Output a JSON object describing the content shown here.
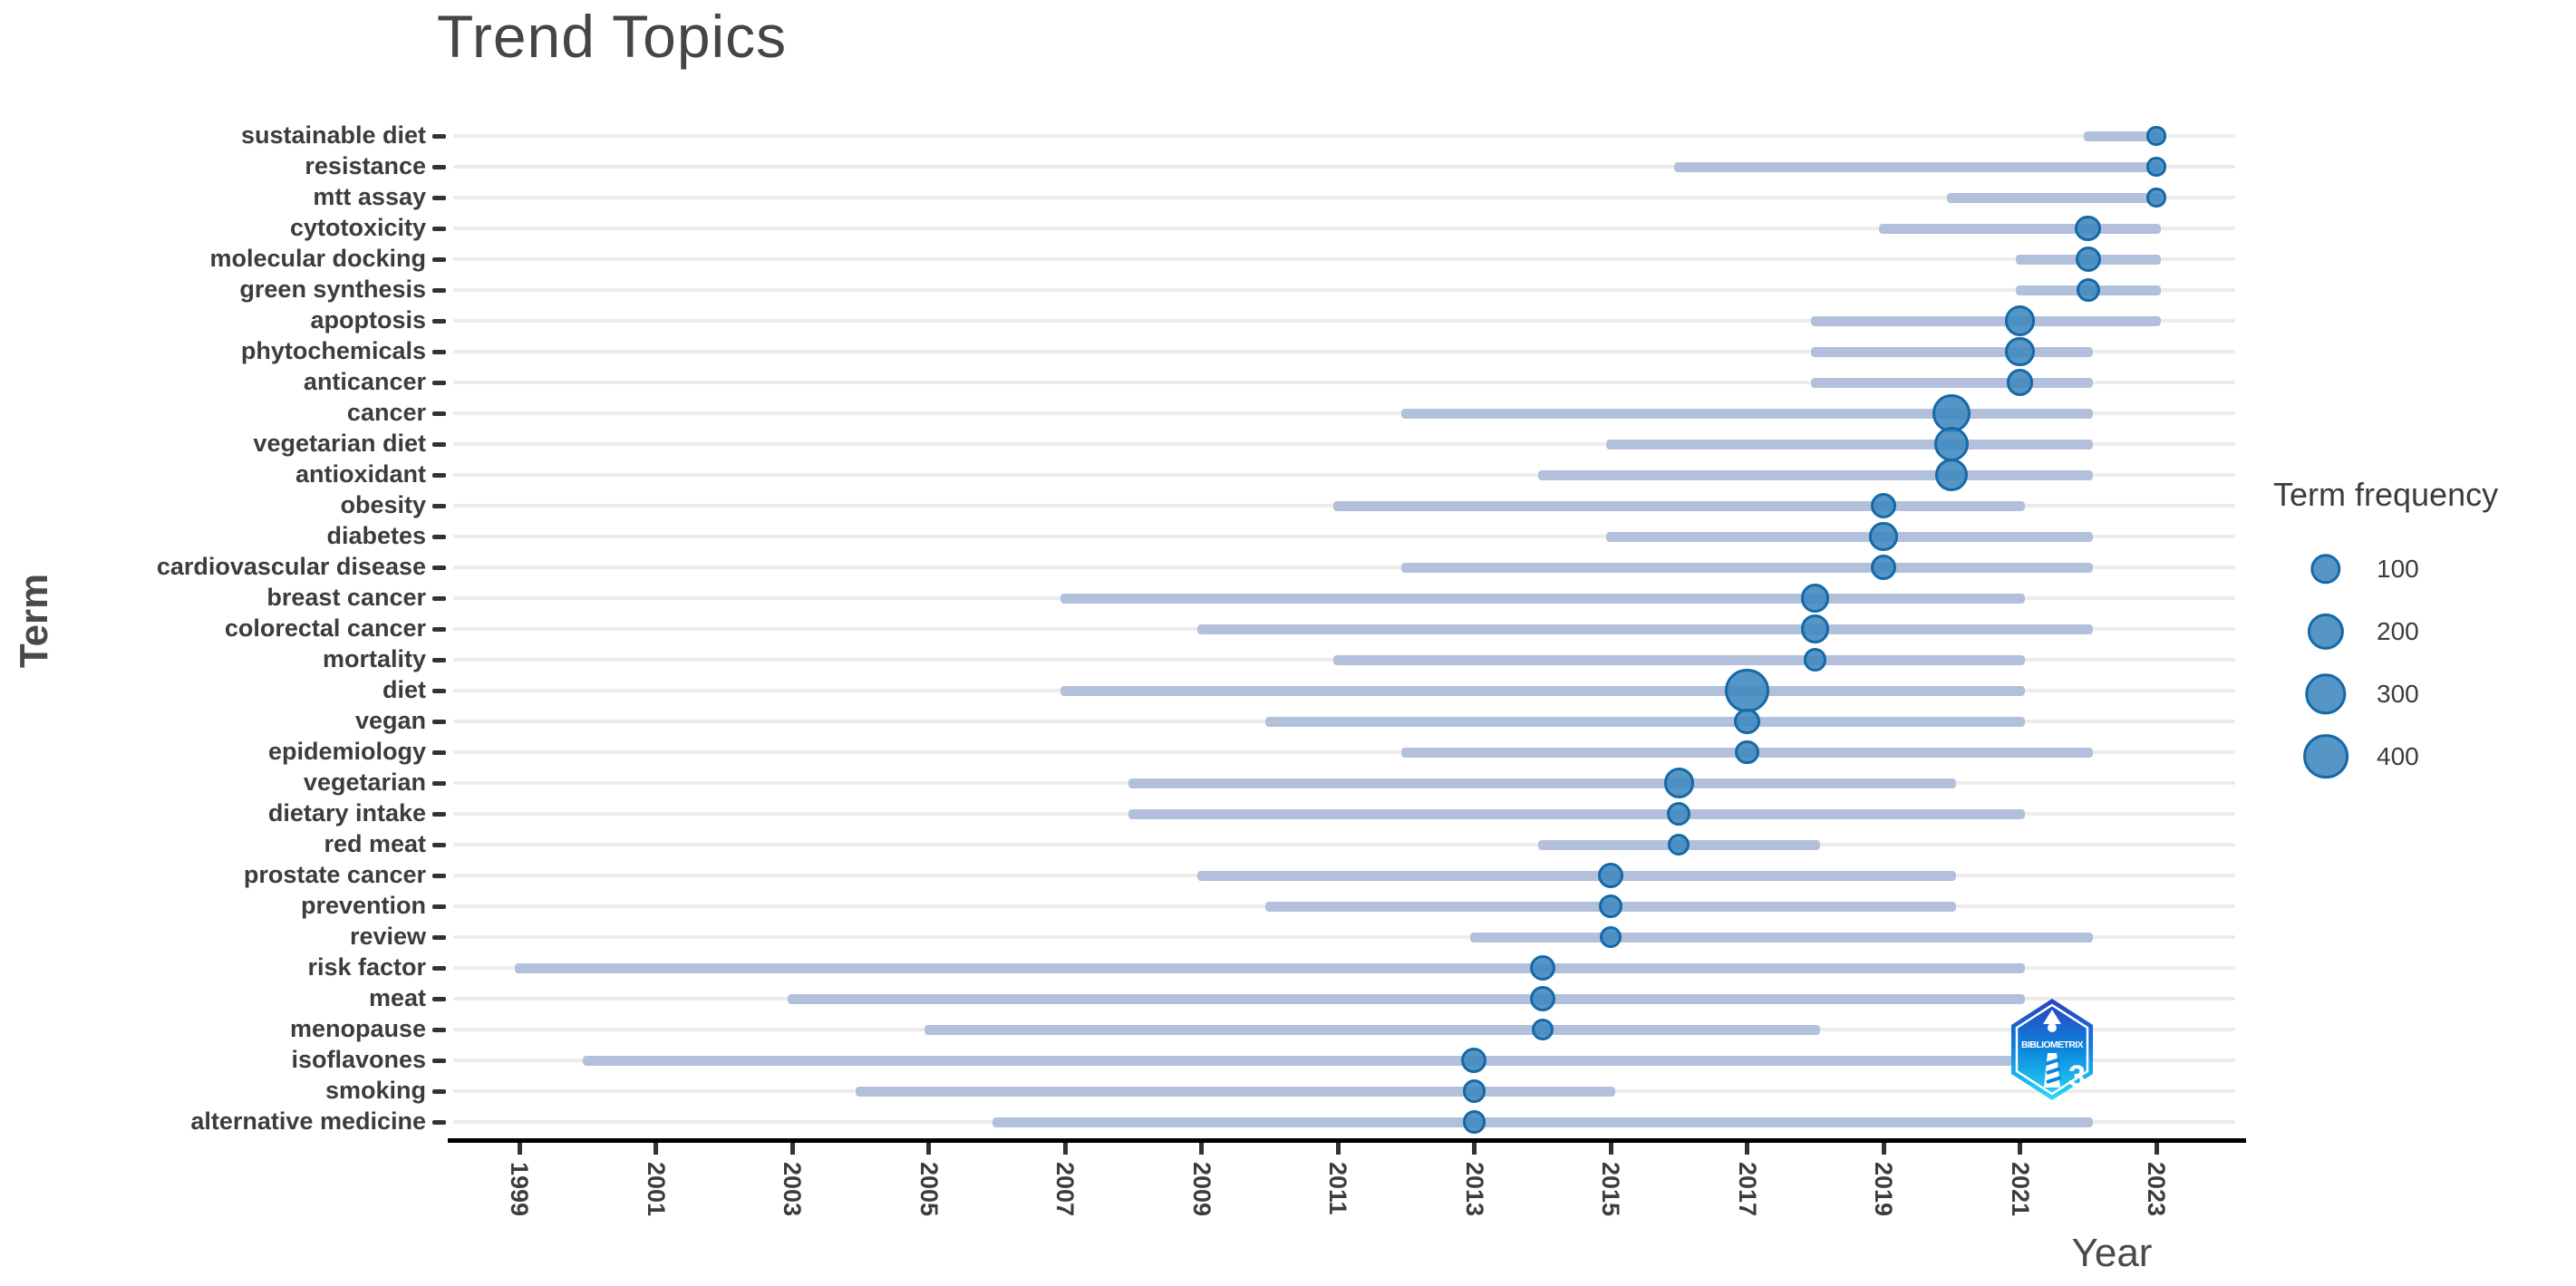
{
  "chart_data": {
    "type": "scatter",
    "subtype": "bubble-timeline",
    "title": "Trend Topics",
    "xlabel": "Year",
    "ylabel": "Term",
    "x_ticks": [
      1999,
      2001,
      2003,
      2005,
      2007,
      2009,
      2011,
      2013,
      2015,
      2017,
      2019,
      2021,
      2023
    ],
    "x_range": [
      1998,
      2024.2
    ],
    "grid": "horizontal",
    "legend": {
      "title": "Term frequency",
      "sizes": [
        100,
        200,
        300,
        400
      ],
      "position": "right"
    },
    "terms": [
      {
        "term": "sustainable diet",
        "year_q1": 2022,
        "year_med": 2023,
        "year_q3": 2023,
        "freq": 6
      },
      {
        "term": "resistance",
        "year_q1": 2016,
        "year_med": 2023,
        "year_q3": 2023,
        "freq": 6
      },
      {
        "term": "mtt assay",
        "year_q1": 2020,
        "year_med": 2023,
        "year_q3": 2023,
        "freq": 6
      },
      {
        "term": "cytotoxicity",
        "year_q1": 2019,
        "year_med": 2022,
        "year_q3": 2023,
        "freq": 50
      },
      {
        "term": "molecular docking",
        "year_q1": 2021,
        "year_med": 2022,
        "year_q3": 2023,
        "freq": 45
      },
      {
        "term": "green synthesis",
        "year_q1": 2021,
        "year_med": 2022,
        "year_q3": 2023,
        "freq": 30
      },
      {
        "term": "apoptosis",
        "year_q1": 2018,
        "year_med": 2021,
        "year_q3": 2023,
        "freq": 100
      },
      {
        "term": "phytochemicals",
        "year_q1": 2018,
        "year_med": 2021,
        "year_q3": 2022,
        "freq": 85
      },
      {
        "term": "anticancer",
        "year_q1": 2018,
        "year_med": 2021,
        "year_q3": 2022,
        "freq": 60
      },
      {
        "term": "cancer",
        "year_q1": 2012,
        "year_med": 2020,
        "year_q3": 2022,
        "freq": 225
      },
      {
        "term": "vegetarian diet",
        "year_q1": 2015,
        "year_med": 2020,
        "year_q3": 2022,
        "freq": 170
      },
      {
        "term": "antioxidant",
        "year_q1": 2014,
        "year_med": 2020,
        "year_q3": 2022,
        "freq": 140
      },
      {
        "term": "obesity",
        "year_q1": 2011,
        "year_med": 2019,
        "year_q3": 2021,
        "freq": 45
      },
      {
        "term": "diabetes",
        "year_q1": 2015,
        "year_med": 2019,
        "year_q3": 2022,
        "freq": 75
      },
      {
        "term": "cardiovascular disease",
        "year_q1": 2012,
        "year_med": 2019,
        "year_q3": 2022,
        "freq": 45
      },
      {
        "term": "breast cancer",
        "year_q1": 2007,
        "year_med": 2018,
        "year_q3": 2021,
        "freq": 75
      },
      {
        "term": "colorectal cancer",
        "year_q1": 2009,
        "year_med": 2018,
        "year_q3": 2022,
        "freq": 75
      },
      {
        "term": "mortality",
        "year_q1": 2011,
        "year_med": 2018,
        "year_q3": 2021,
        "freq": 25
      },
      {
        "term": "diet",
        "year_q1": 2007,
        "year_med": 2017,
        "year_q3": 2021,
        "freq": 380
      },
      {
        "term": "vegan",
        "year_q1": 2010,
        "year_med": 2017,
        "year_q3": 2021,
        "freq": 50
      },
      {
        "term": "epidemiology",
        "year_q1": 2012,
        "year_med": 2017,
        "year_q3": 2022,
        "freq": 32
      },
      {
        "term": "vegetarian",
        "year_q1": 2008,
        "year_med": 2016,
        "year_q3": 2020,
        "freq": 100
      },
      {
        "term": "dietary intake",
        "year_q1": 2008,
        "year_med": 2016,
        "year_q3": 2021,
        "freq": 32
      },
      {
        "term": "red meat",
        "year_q1": 2014,
        "year_med": 2016,
        "year_q3": 2018,
        "freq": 20
      },
      {
        "term": "prostate cancer",
        "year_q1": 2009,
        "year_med": 2015,
        "year_q3": 2020,
        "freq": 45
      },
      {
        "term": "prevention",
        "year_q1": 2010,
        "year_med": 2015,
        "year_q3": 2020,
        "freq": 32
      },
      {
        "term": "review",
        "year_q1": 2013,
        "year_med": 2015,
        "year_q3": 2022,
        "freq": 20
      },
      {
        "term": "risk factor",
        "year_q1": 1999,
        "year_med": 2014,
        "year_q3": 2021,
        "freq": 45
      },
      {
        "term": "meat",
        "year_q1": 2003,
        "year_med": 2014,
        "year_q3": 2021,
        "freq": 45
      },
      {
        "term": "menopause",
        "year_q1": 2005,
        "year_med": 2014,
        "year_q3": 2018,
        "freq": 20
      },
      {
        "term": "isoflavones",
        "year_q1": 2000,
        "year_med": 2013,
        "year_q3": 2021,
        "freq": 45
      },
      {
        "term": "smoking",
        "year_q1": 2004,
        "year_med": 2013,
        "year_q3": 2015,
        "freq": 25
      },
      {
        "term": "alternative medicine",
        "year_q1": 2006,
        "year_med": 2013,
        "year_q3": 2022,
        "freq": 25
      }
    ]
  },
  "branding": {
    "logo_text": "BIBLIOMETRIX",
    "logo_number": "3"
  },
  "colors": {
    "bubble_fill": "#3e87be",
    "bubble_stroke": "#1669a8",
    "range_line": "#b2c0db",
    "gridline": "#ececec",
    "axis_line": "#000000",
    "text": "#3c3c3c",
    "logo_top": "#2b3fc0",
    "logo_mid": "#0c85dc",
    "logo_bottom": "#28ddf8"
  }
}
